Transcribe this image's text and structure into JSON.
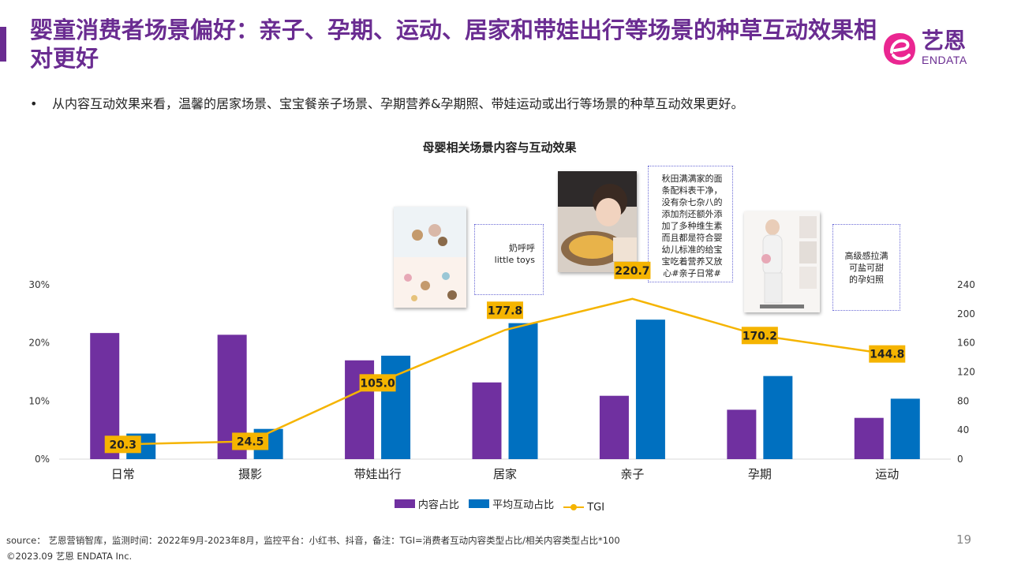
{
  "header": {
    "title": "婴童消费者场景偏好：亲子、孕期、运动、居家和带娃出行等场景的种草互动效果相对更好",
    "logo_cn": "艺恩",
    "logo_en": "ENDATA"
  },
  "bullet": "从内容互动效果来看，温馨的居家场景、宝宝餐亲子场景、孕期营养&孕期照、带娃运动或出行等场景的种草互动效果更好。",
  "callouts": {
    "home": "奶呼呼\nlittle toys",
    "parent": "秋田满满家的面\n条配料表干净，\n没有杂七杂八的\n添加剂还额外添\n加了多种维生素\n而且都是符合婴\n幼儿标准的给宝\n宝吃着营养又放\n心#亲子日常#",
    "pregnancy": "高级感拉满\n可盐可甜\n的孕妇照"
  },
  "chart_data": {
    "type": "bar",
    "title": "母婴相关场景内容与互动效果",
    "categories": [
      "日常",
      "摄影",
      "带娃出行",
      "居家",
      "亲子",
      "孕期",
      "运动"
    ],
    "series": [
      {
        "name": "内容占比",
        "kind": "bar",
        "axis": "left",
        "color": "#7030a0",
        "values": [
          21.7,
          21.4,
          17.0,
          13.2,
          10.9,
          8.5,
          7.1
        ]
      },
      {
        "name": "平均互动占比",
        "kind": "bar",
        "axis": "left",
        "color": "#0070c0",
        "values": [
          4.4,
          5.2,
          17.8,
          23.4,
          24.0,
          14.3,
          10.4
        ]
      },
      {
        "name": "TGI",
        "kind": "line",
        "axis": "right",
        "color": "#f5b400",
        "values": [
          20.3,
          24.5,
          105.0,
          177.8,
          220.7,
          170.2,
          144.8
        ],
        "labels": [
          "20.3",
          "24.5",
          "105.0",
          "177.8",
          "220.7",
          "170.2",
          "144.8"
        ]
      }
    ],
    "y_left": {
      "ticks": [
        "0%",
        "10%",
        "20%",
        "30%"
      ],
      "range": [
        0,
        30
      ]
    },
    "y_right": {
      "ticks": [
        "0",
        "40",
        "80",
        "120",
        "160",
        "200",
        "240"
      ],
      "range": [
        0,
        240
      ]
    },
    "legend_position": "bottom"
  },
  "footer": {
    "source": "source： 艺恩营销智库，监测时间：2022年9月-2023年8月，监控平台：小红书、抖音，备注：TGI=消费者互动内容类型占比/相关内容类型占比*100",
    "copyright": "©2023.09  艺恩 ENDATA Inc.",
    "page": "19"
  }
}
